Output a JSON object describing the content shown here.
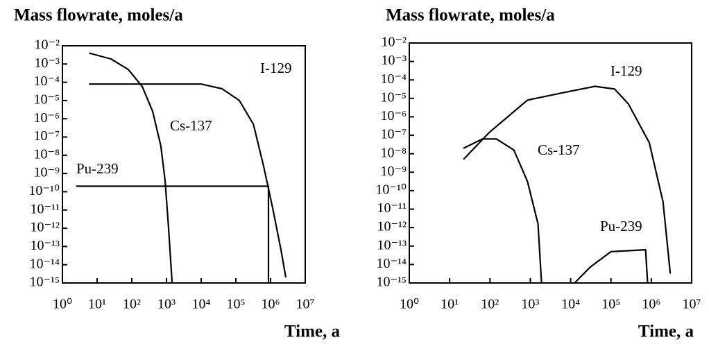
{
  "chart_data": [
    {
      "type": "line",
      "title": "Mass flowrate, moles/a",
      "xlabel": "Time, a",
      "xscale": "log",
      "yscale": "log",
      "xlim": [
        1,
        10000000
      ],
      "ylim": [
        1e-15,
        0.01
      ],
      "xticks": [
        {
          "value": 1,
          "label": "10⁰"
        },
        {
          "value": 10,
          "label": "10¹"
        },
        {
          "value": 100,
          "label": "10²"
        },
        {
          "value": 1000,
          "label": "10³"
        },
        {
          "value": 10000,
          "label": "10⁴"
        },
        {
          "value": 100000,
          "label": "10⁵"
        },
        {
          "value": 1000000,
          "label": "10⁶"
        },
        {
          "value": 10000000,
          "label": "10⁷"
        }
      ],
      "yticks": [
        {
          "value": 0.01,
          "label": "10⁻²"
        },
        {
          "value": 0.001,
          "label": "10⁻³"
        },
        {
          "value": 0.0001,
          "label": "10⁻⁴"
        },
        {
          "value": 1e-05,
          "label": "10⁻⁵"
        },
        {
          "value": 1e-06,
          "label": "10⁻⁶"
        },
        {
          "value": 1e-07,
          "label": "10⁻⁷"
        },
        {
          "value": 1e-08,
          "label": "10⁻⁸"
        },
        {
          "value": 1e-09,
          "label": "10⁻⁹"
        },
        {
          "value": 1e-10,
          "label": "10⁻¹⁰"
        },
        {
          "value": 1e-11,
          "label": "10⁻¹¹"
        },
        {
          "value": 1e-12,
          "label": "10⁻¹²"
        },
        {
          "value": 1e-13,
          "label": "10⁻¹³"
        },
        {
          "value": 1e-14,
          "label": "10⁻¹⁴"
        },
        {
          "value": 1e-15,
          "label": "10⁻¹⁵"
        }
      ],
      "series": [
        {
          "name": "I-129",
          "color": "#000000",
          "x": [
            5.8,
            10000,
            40000,
            126000,
            320000,
            630000,
            1150000,
            2000000,
            2750000
          ],
          "values": [
            8e-05,
            8e-05,
            4.4e-05,
            1e-05,
            5e-07,
            2.5e-09,
            1.3e-11,
            6.3e-14,
            2e-15
          ]
        },
        {
          "name": "Cs-137",
          "color": "#000000",
          "x": [
            5.8,
            25,
            79,
            200,
            400,
            690,
            910,
            1150,
            1450
          ],
          "values": [
            0.004,
            0.0019,
            0.0005,
            5.8e-05,
            2.5e-06,
            3.2e-08,
            4e-10,
            1e-12,
            1e-15
          ]
        },
        {
          "name": "Pu-239",
          "color": "#000000",
          "x": [
            2.5,
            870000,
            870000
          ],
          "values": [
            2e-10,
            2e-10,
            1e-15
          ]
        }
      ]
    },
    {
      "type": "line",
      "title": "Mass flowrate, moles/a",
      "xlabel": "Time, a",
      "xscale": "log",
      "yscale": "log",
      "xlim": [
        1,
        10000000
      ],
      "ylim": [
        1e-15,
        0.01
      ],
      "xticks": [
        {
          "value": 1,
          "label": "10⁰"
        },
        {
          "value": 10,
          "label": "10¹"
        },
        {
          "value": 100,
          "label": "10²"
        },
        {
          "value": 1000,
          "label": "10³"
        },
        {
          "value": 10000,
          "label": "10⁴"
        },
        {
          "value": 100000,
          "label": "10⁵"
        },
        {
          "value": 1000000,
          "label": "10⁶"
        },
        {
          "value": 10000000,
          "label": "10⁷"
        }
      ],
      "yticks": [
        {
          "value": 0.01,
          "label": "10⁻²"
        },
        {
          "value": 0.001,
          "label": "10⁻³"
        },
        {
          "value": 0.0001,
          "label": "10⁻⁴"
        },
        {
          "value": 1e-05,
          "label": "10⁻⁵"
        },
        {
          "value": 1e-06,
          "label": "10⁻⁶"
        },
        {
          "value": 1e-07,
          "label": "10⁻⁷"
        },
        {
          "value": 1e-08,
          "label": "10⁻⁸"
        },
        {
          "value": 1e-09,
          "label": "10⁻⁹"
        },
        {
          "value": 1e-10,
          "label": "10⁻¹⁰"
        },
        {
          "value": 1e-11,
          "label": "10⁻¹¹"
        },
        {
          "value": 1e-12,
          "label": "10⁻¹²"
        },
        {
          "value": 1e-13,
          "label": "10⁻¹³"
        },
        {
          "value": 1e-14,
          "label": "10⁻¹⁴"
        },
        {
          "value": 1e-15,
          "label": "10⁻¹⁵"
        }
      ],
      "series": [
        {
          "name": "I-129",
          "color": "#000000",
          "x": [
            22,
            95,
            850,
            6300,
            40000,
            123000,
            270000,
            890000,
            1950000,
            2950000
          ],
          "values": [
            5e-09,
            1.4e-07,
            8e-06,
            2e-05,
            4.5e-05,
            3.2e-05,
            5e-06,
            4e-08,
            2.5e-11,
            3.2e-15
          ]
        },
        {
          "name": "Cs-137",
          "color": "#000000",
          "x": [
            22,
            65,
            145,
            390,
            850,
            1550,
            1900
          ],
          "values": [
            2e-08,
            6.3e-08,
            6.3e-08,
            1.6e-08,
            3.2e-10,
            1.6e-12,
            1e-15
          ]
        },
        {
          "name": "Pu-239",
          "color": "#000000",
          "x": [
            12600,
            30000,
            100000,
            720000,
            810000
          ],
          "values": [
            1e-15,
            7e-15,
            5e-14,
            6.3e-14,
            1e-15
          ]
        }
      ]
    }
  ]
}
